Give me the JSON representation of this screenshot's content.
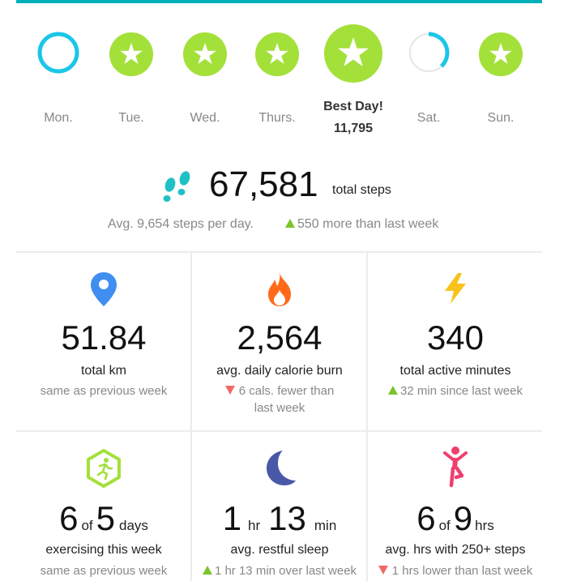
{
  "days": [
    {
      "label": "Mon.",
      "state": "ring"
    },
    {
      "label": "Tue.",
      "state": "star"
    },
    {
      "label": "Wed.",
      "state": "star"
    },
    {
      "label": "Thurs.",
      "state": "star"
    },
    {
      "label": "Best Day!",
      "value": "11,795",
      "state": "best"
    },
    {
      "label": "Sat.",
      "state": "partial",
      "progress": 0.38
    },
    {
      "label": "Sun.",
      "state": "star"
    }
  ],
  "steps": {
    "total": "67,581",
    "unit": "total steps",
    "avg": "Avg. 9,654 steps per day.",
    "change": "550 more than last week",
    "icon": "footsteps-icon"
  },
  "tiles": [
    {
      "icon": "location-pin-icon",
      "value": "51.84",
      "label": "total km",
      "sub": "same as previous week",
      "trend": "none"
    },
    {
      "icon": "flame-icon",
      "value": "2,564",
      "label": "avg. daily calorie burn",
      "sub": "6 cals. fewer than last week",
      "trend": "down"
    },
    {
      "icon": "lightning-icon",
      "value": "340",
      "label": "total active minutes",
      "sub": "32 min since last week",
      "trend": "up"
    },
    {
      "icon": "running-hexagon-icon",
      "value_a": "6",
      "of": "of",
      "value_b": "5",
      "unit": "days",
      "label": "exercising this week",
      "sub": "same as previous week",
      "trend": "none"
    },
    {
      "icon": "moon-icon",
      "value_a": "1",
      "unit_a": "hr",
      "value_b": "13",
      "unit_b": "min",
      "label": "avg. restful sleep",
      "sub": "1 hr 13 min over last week",
      "trend": "up"
    },
    {
      "icon": "standing-figure-icon",
      "value_a": "6",
      "of": "of",
      "value_b": "9",
      "unit": "hrs",
      "label": "avg. hrs with 250+ steps",
      "sub": "1 hrs lower than last week",
      "trend": "down"
    }
  ],
  "colors": {
    "accent": "#00b0b9",
    "goal_green": "#a4e03a",
    "ring_cyan": "#1bc6e8",
    "up": "#7dc42a",
    "down": "#f06a6a"
  }
}
